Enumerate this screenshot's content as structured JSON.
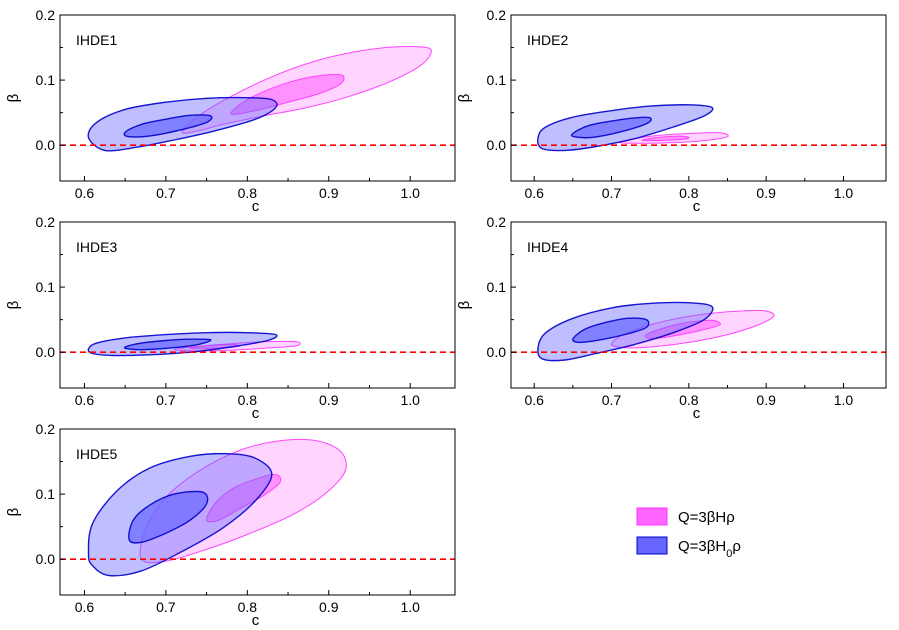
{
  "chart_data": {
    "type": "contour",
    "xlabel": "c",
    "ylabel": "β",
    "xlim": [
      0.57,
      1.055
    ],
    "ylim": [
      -0.055,
      0.2
    ],
    "xticks": [
      "0.6",
      "0.7",
      "0.8",
      "0.9",
      "1.0"
    ],
    "yticks": [
      "0.0",
      "0.1",
      "0.2"
    ],
    "reference_line": {
      "y": 0.0,
      "color": "#ff0000",
      "style": "dashed"
    },
    "legend": {
      "position": "bottom-right",
      "entries": [
        {
          "label": "Q=3βHρ",
          "color": "#ff66ff"
        },
        {
          "label": "Q=3βH₀ρ",
          "color": "#6666ff"
        }
      ]
    },
    "colors": {
      "magenta_fill": "#ff66ff",
      "magenta_edge": "#ff33ff",
      "blue_fill": "#6666ff",
      "blue_edge": "#0000cc"
    },
    "panels": [
      {
        "title": "IHDE1",
        "magenta": {
          "outer": [
            [
              0.72,
              0.02
            ],
            [
              0.74,
              0.045
            ],
            [
              0.78,
              0.075
            ],
            [
              0.83,
              0.105
            ],
            [
              0.88,
              0.128
            ],
            [
              0.93,
              0.143
            ],
            [
              0.98,
              0.151
            ],
            [
              1.02,
              0.15
            ],
            [
              1.025,
              0.14
            ],
            [
              1.01,
              0.12
            ],
            [
              0.97,
              0.095
            ],
            [
              0.92,
              0.073
            ],
            [
              0.87,
              0.057
            ],
            [
              0.82,
              0.045
            ],
            [
              0.77,
              0.032
            ],
            [
              0.74,
              0.022
            ]
          ],
          "inner": [
            [
              0.78,
              0.048
            ],
            [
              0.8,
              0.07
            ],
            [
              0.84,
              0.092
            ],
            [
              0.88,
              0.105
            ],
            [
              0.915,
              0.108
            ],
            [
              0.915,
              0.095
            ],
            [
              0.89,
              0.08
            ],
            [
              0.85,
              0.066
            ],
            [
              0.81,
              0.053
            ]
          ]
        },
        "blue": {
          "outer": [
            [
              0.605,
              0.012
            ],
            [
              0.615,
              0.035
            ],
            [
              0.65,
              0.055
            ],
            [
              0.7,
              0.066
            ],
            [
              0.75,
              0.072
            ],
            [
              0.8,
              0.073
            ],
            [
              0.83,
              0.07
            ],
            [
              0.835,
              0.058
            ],
            [
              0.81,
              0.04
            ],
            [
              0.76,
              0.022
            ],
            [
              0.71,
              0.008
            ],
            [
              0.665,
              -0.003
            ],
            [
              0.625,
              -0.008
            ]
          ],
          "inner": [
            [
              0.65,
              0.02
            ],
            [
              0.67,
              0.032
            ],
            [
              0.7,
              0.04
            ],
            [
              0.73,
              0.046
            ],
            [
              0.755,
              0.045
            ],
            [
              0.75,
              0.035
            ],
            [
              0.72,
              0.024
            ],
            [
              0.685,
              0.015
            ],
            [
              0.655,
              0.013
            ]
          ]
        }
      },
      {
        "title": "IHDE2",
        "magenta": {
          "outer": [
            [
              0.71,
              0.004
            ],
            [
              0.73,
              0.01
            ],
            [
              0.76,
              0.015
            ],
            [
              0.8,
              0.018
            ],
            [
              0.84,
              0.019
            ],
            [
              0.85,
              0.013
            ],
            [
              0.82,
              0.007
            ],
            [
              0.78,
              0.004
            ],
            [
              0.74,
              0.003
            ]
          ],
          "inner": [
            [
              0.74,
              0.008
            ],
            [
              0.76,
              0.012
            ],
            [
              0.79,
              0.014
            ],
            [
              0.8,
              0.011
            ],
            [
              0.78,
              0.008
            ],
            [
              0.75,
              0.007
            ]
          ]
        },
        "blue": {
          "outer": [
            [
              0.605,
              0.012
            ],
            [
              0.615,
              0.028
            ],
            [
              0.65,
              0.043
            ],
            [
              0.7,
              0.053
            ],
            [
              0.75,
              0.06
            ],
            [
              0.8,
              0.062
            ],
            [
              0.83,
              0.058
            ],
            [
              0.82,
              0.045
            ],
            [
              0.78,
              0.028
            ],
            [
              0.73,
              0.01
            ],
            [
              0.68,
              -0.002
            ],
            [
              0.64,
              -0.008
            ],
            [
              0.61,
              -0.005
            ]
          ],
          "inner": [
            [
              0.65,
              0.018
            ],
            [
              0.67,
              0.03
            ],
            [
              0.7,
              0.037
            ],
            [
              0.73,
              0.042
            ],
            [
              0.75,
              0.042
            ],
            [
              0.745,
              0.033
            ],
            [
              0.71,
              0.02
            ],
            [
              0.675,
              0.012
            ],
            [
              0.652,
              0.013
            ]
          ]
        }
      },
      {
        "title": "IHDE3",
        "magenta": {
          "outer": [
            [
              0.71,
              0.004
            ],
            [
              0.74,
              0.009
            ],
            [
              0.78,
              0.013
            ],
            [
              0.82,
              0.016
            ],
            [
              0.86,
              0.016
            ],
            [
              0.86,
              0.01
            ],
            [
              0.82,
              0.006
            ],
            [
              0.78,
              0.003
            ],
            [
              0.74,
              0.002
            ]
          ],
          "inner": [
            [
              0.73,
              0.006
            ],
            [
              0.75,
              0.01
            ],
            [
              0.78,
              0.012
            ],
            [
              0.79,
              0.009
            ],
            [
              0.76,
              0.006
            ]
          ]
        },
        "blue": {
          "outer": [
            [
              0.605,
              0.005
            ],
            [
              0.615,
              0.014
            ],
            [
              0.65,
              0.022
            ],
            [
              0.7,
              0.027
            ],
            [
              0.75,
              0.03
            ],
            [
              0.8,
              0.03
            ],
            [
              0.835,
              0.027
            ],
            [
              0.825,
              0.018
            ],
            [
              0.78,
              0.008
            ],
            [
              0.73,
              0.0
            ],
            [
              0.68,
              -0.004
            ],
            [
              0.635,
              -0.005
            ],
            [
              0.61,
              -0.002
            ]
          ],
          "inner": [
            [
              0.65,
              0.008
            ],
            [
              0.67,
              0.014
            ],
            [
              0.7,
              0.018
            ],
            [
              0.73,
              0.02
            ],
            [
              0.755,
              0.019
            ],
            [
              0.74,
              0.012
            ],
            [
              0.71,
              0.007
            ],
            [
              0.675,
              0.004
            ],
            [
              0.655,
              0.005
            ]
          ]
        }
      },
      {
        "title": "IHDE4",
        "magenta": {
          "outer": [
            [
              0.7,
              0.013
            ],
            [
              0.72,
              0.03
            ],
            [
              0.76,
              0.045
            ],
            [
              0.8,
              0.055
            ],
            [
              0.85,
              0.062
            ],
            [
              0.895,
              0.064
            ],
            [
              0.91,
              0.056
            ],
            [
              0.89,
              0.042
            ],
            [
              0.85,
              0.027
            ],
            [
              0.8,
              0.015
            ],
            [
              0.75,
              0.008
            ],
            [
              0.715,
              0.007
            ]
          ],
          "inner": [
            [
              0.745,
              0.027
            ],
            [
              0.77,
              0.038
            ],
            [
              0.8,
              0.046
            ],
            [
              0.83,
              0.049
            ],
            [
              0.84,
              0.042
            ],
            [
              0.81,
              0.032
            ],
            [
              0.775,
              0.024
            ],
            [
              0.75,
              0.021
            ]
          ]
        },
        "blue": {
          "outer": [
            [
              0.605,
              0.008
            ],
            [
              0.615,
              0.03
            ],
            [
              0.65,
              0.052
            ],
            [
              0.7,
              0.068
            ],
            [
              0.75,
              0.075
            ],
            [
              0.8,
              0.076
            ],
            [
              0.83,
              0.07
            ],
            [
              0.82,
              0.05
            ],
            [
              0.78,
              0.03
            ],
            [
              0.73,
              0.012
            ],
            [
              0.68,
              -0.002
            ],
            [
              0.64,
              -0.012
            ],
            [
              0.61,
              -0.01
            ]
          ],
          "inner": [
            [
              0.65,
              0.02
            ],
            [
              0.665,
              0.035
            ],
            [
              0.69,
              0.045
            ],
            [
              0.72,
              0.052
            ],
            [
              0.745,
              0.05
            ],
            [
              0.745,
              0.038
            ],
            [
              0.72,
              0.028
            ],
            [
              0.69,
              0.02
            ],
            [
              0.66,
              0.015
            ]
          ]
        }
      },
      {
        "title": "IHDE5",
        "magenta": {
          "outer": [
            [
              0.67,
              0.0
            ],
            [
              0.675,
              0.045
            ],
            [
              0.7,
              0.095
            ],
            [
              0.74,
              0.135
            ],
            [
              0.79,
              0.167
            ],
            [
              0.84,
              0.182
            ],
            [
              0.885,
              0.182
            ],
            [
              0.915,
              0.165
            ],
            [
              0.92,
              0.135
            ],
            [
              0.895,
              0.1
            ],
            [
              0.855,
              0.068
            ],
            [
              0.8,
              0.038
            ],
            [
              0.75,
              0.015
            ],
            [
              0.7,
              -0.003
            ]
          ],
          "inner": [
            [
              0.75,
              0.06
            ],
            [
              0.76,
              0.085
            ],
            [
              0.78,
              0.107
            ],
            [
              0.81,
              0.123
            ],
            [
              0.835,
              0.13
            ],
            [
              0.84,
              0.118
            ],
            [
              0.82,
              0.098
            ],
            [
              0.79,
              0.077
            ],
            [
              0.765,
              0.06
            ]
          ]
        },
        "blue": {
          "outer": [
            [
              0.605,
              0.008
            ],
            [
              0.61,
              0.055
            ],
            [
              0.64,
              0.105
            ],
            [
              0.68,
              0.14
            ],
            [
              0.73,
              0.158
            ],
            [
              0.775,
              0.162
            ],
            [
              0.81,
              0.155
            ],
            [
              0.83,
              0.13
            ],
            [
              0.81,
              0.09
            ],
            [
              0.77,
              0.048
            ],
            [
              0.72,
              0.012
            ],
            [
              0.67,
              -0.018
            ],
            [
              0.63,
              -0.025
            ],
            [
              0.61,
              -0.01
            ]
          ],
          "inner": [
            [
              0.655,
              0.03
            ],
            [
              0.66,
              0.06
            ],
            [
              0.68,
              0.083
            ],
            [
              0.71,
              0.1
            ],
            [
              0.745,
              0.103
            ],
            [
              0.75,
              0.085
            ],
            [
              0.73,
              0.06
            ],
            [
              0.7,
              0.04
            ],
            [
              0.67,
              0.026
            ]
          ]
        }
      }
    ]
  }
}
